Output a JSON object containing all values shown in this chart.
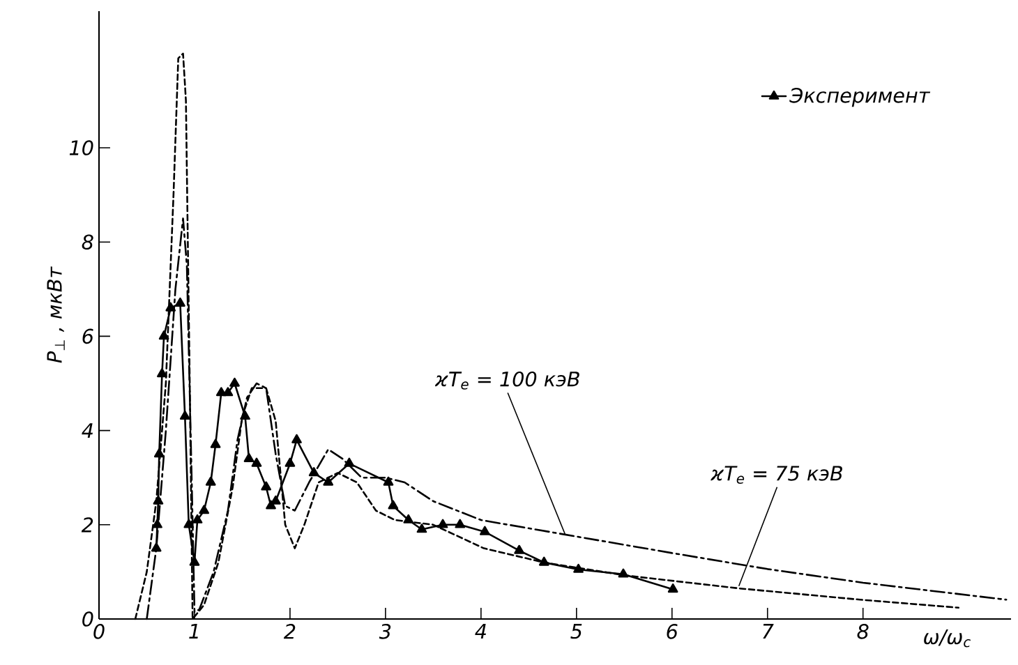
{
  "chart_data": {
    "type": "line",
    "xlabel": "ω/ω$_{c}$",
    "ylabel": "P$_{⊥}$ ,  мкВт",
    "xlim": [
      0,
      9.55
    ],
    "ylim": [
      0,
      12.9
    ],
    "xticks": [
      0,
      1,
      2,
      3,
      4,
      5,
      6,
      7,
      8
    ],
    "yticks": [
      0,
      2,
      4,
      6,
      8,
      10
    ],
    "legend": "top right",
    "grid": false,
    "series": [
      {
        "name": "Эксперимент",
        "color": "#000000",
        "marker": "triangle",
        "line_style": "solid",
        "x": [
          0.6,
          0.61,
          0.62,
          0.63,
          0.66,
          0.68,
          0.75,
          0.85,
          0.9,
          0.94,
          1.0,
          1.03,
          1.1,
          1.17,
          1.22,
          1.28,
          1.35,
          1.42,
          1.53,
          1.57,
          1.65,
          1.75,
          1.8,
          1.85,
          2.0,
          2.07,
          2.25,
          2.4,
          2.62,
          3.03,
          3.08,
          3.24,
          3.38,
          3.6,
          3.78,
          4.04,
          4.4,
          4.66,
          5.02,
          5.49,
          6.01
        ],
        "values": [
          1.5,
          2.0,
          2.5,
          3.5,
          5.2,
          6.0,
          6.6,
          6.7,
          4.3,
          2.0,
          1.2,
          2.1,
          2.3,
          2.9,
          3.7,
          4.8,
          4.8,
          5.0,
          4.3,
          3.4,
          3.3,
          2.8,
          2.4,
          2.5,
          3.3,
          3.8,
          3.1,
          2.9,
          3.3,
          2.9,
          2.4,
          2.1,
          1.9,
          2.0,
          2.0,
          1.85,
          1.45,
          1.2,
          1.05,
          0.95,
          0.63
        ]
      },
      {
        "color": "#000000",
        "marker": "none",
        "line_style": "dashdot",
        "x": [
          0.5,
          0.6,
          0.7,
          0.8,
          0.88,
          0.92,
          0.97,
          1.0,
          1.05,
          1.2,
          1.35,
          1.45,
          1.55,
          1.65,
          1.75,
          1.85,
          1.95,
          2.05,
          2.2,
          2.4,
          2.55,
          2.75,
          3.0,
          3.2,
          3.5,
          4.0,
          5.0,
          6.0,
          7.0,
          8.0,
          9.5
        ],
        "values": [
          0,
          1.5,
          4,
          7,
          8.5,
          7.5,
          3,
          0.15,
          0.2,
          1,
          2.3,
          3.8,
          4.7,
          5.0,
          4.9,
          3.5,
          2.4,
          2.3,
          2.9,
          3.6,
          3.4,
          3.0,
          3.0,
          2.9,
          2.5,
          2.1,
          1.75,
          1.4,
          1.06,
          0.77,
          0.41
        ]
      },
      {
        "color": "#000000",
        "marker": "none",
        "line_style": "dashed",
        "x": [
          0.38,
          0.5,
          0.6,
          0.7,
          0.78,
          0.83,
          0.88,
          0.91,
          0.95,
          0.98,
          1.1,
          1.25,
          1.4,
          1.5,
          1.6,
          1.75,
          1.85,
          1.95,
          2.05,
          2.15,
          2.3,
          2.5,
          2.7,
          2.9,
          3.1,
          3.5,
          4.03,
          4.66,
          5.53,
          6.7,
          7.97,
          9.0
        ],
        "values": [
          0,
          1,
          2.5,
          5,
          9,
          11.9,
          12,
          11,
          5,
          0,
          0.3,
          1.2,
          2.8,
          4.3,
          4.9,
          4.9,
          4.2,
          2,
          1.5,
          2,
          2.9,
          3.1,
          2.9,
          2.3,
          2.1,
          2.0,
          1.5,
          1.2,
          0.92,
          0.65,
          0.41,
          0.24
        ]
      }
    ],
    "annotations": [
      {
        "text": "ϰT$_{e}$ = 100 кэВ",
        "x": 4.88,
        "y": 1.8
      },
      {
        "text": "ϰT$_{e}$ = 75 кэВ",
        "x": 6.7,
        "y": 0.7
      }
    ]
  }
}
